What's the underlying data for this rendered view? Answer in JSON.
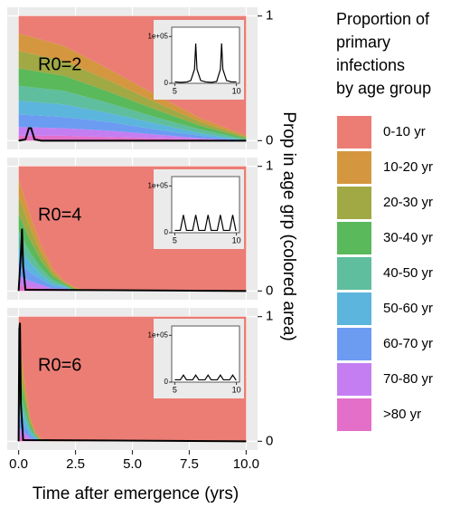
{
  "chart_data": {
    "type": "area",
    "xlabel": "Time after emergence (yrs)",
    "y2label": "Prop in age grp (colored area)",
    "legend_title": [
      "Proportion of",
      "primary",
      "infections",
      "by age group"
    ],
    "xlim": [
      -0.5,
      10.5
    ],
    "xticks": [
      {
        "value": 0,
        "label": "0.0"
      },
      {
        "value": 2.5,
        "label": "2.5"
      },
      {
        "value": 5,
        "label": "5.0"
      },
      {
        "value": 7.5,
        "label": "7.5"
      },
      {
        "value": 10,
        "label": "10.0"
      }
    ],
    "ylim": [
      -0.07,
      1.07
    ],
    "y2ticks": [
      0,
      1
    ],
    "grid": true,
    "groups": [
      {
        "name": "0-10 yr",
        "color": "#eb7d75"
      },
      {
        "name": "10-20 yr",
        "color": "#d4973f"
      },
      {
        "name": "20-30 yr",
        "color": "#a0a944"
      },
      {
        "name": "30-40 yr",
        "color": "#5ab95a"
      },
      {
        "name": "40-50 yr",
        "color": "#5fbe9d"
      },
      {
        "name": "50-60 yr",
        "color": "#5cb5dc"
      },
      {
        "name": "60-70 yr",
        "color": "#6b9cf2"
      },
      {
        "name": "70-80 yr",
        "color": "#c57ef2"
      },
      {
        "name": ">80 yr",
        "color": "#e46fc9"
      }
    ],
    "panels": [
      {
        "label": "R0=2",
        "x": [
          0,
          2,
          4,
          6,
          8,
          10
        ],
        "series": [
          {
            "values": [
              0.14,
              0.24,
              0.43,
              0.63,
              0.82,
              0.96
            ]
          },
          {
            "values": [
              0.14,
              0.12,
              0.09,
              0.06,
              0.03,
              0.01
            ]
          },
          {
            "values": [
              0.14,
              0.12,
              0.09,
              0.06,
              0.03,
              0.01
            ]
          },
          {
            "values": [
              0.14,
              0.12,
              0.09,
              0.06,
              0.03,
              0.01
            ]
          },
          {
            "values": [
              0.12,
              0.11,
              0.08,
              0.05,
              0.03,
              0.01
            ]
          },
          {
            "values": [
              0.11,
              0.1,
              0.07,
              0.05,
              0.02,
              0
            ]
          },
          {
            "values": [
              0.1,
              0.09,
              0.07,
              0.04,
              0.02,
              0
            ]
          },
          {
            "values": [
              0.07,
              0.06,
              0.05,
              0.03,
              0.01,
              0
            ]
          },
          {
            "values": [
              0.04,
              0.04,
              0.03,
              0.02,
              0.01,
              0
            ]
          }
        ],
        "line": {
          "x": [
            0,
            0.3,
            0.45,
            0.55,
            0.7,
            1,
            10
          ],
          "values": [
            0,
            0.01,
            0.1,
            0.1,
            0.01,
            0,
            0
          ]
        },
        "inset": {
          "xlim": [
            4.75,
            10.25
          ],
          "ylim": [
            0,
            120000
          ],
          "xticks": [
            5,
            10
          ],
          "yticks": [
            0,
            {
              "value": 100000,
              "label": "1e+05"
            }
          ],
          "x": [
            5,
            5.5,
            6,
            6.3,
            6.6,
            6.7,
            6.8,
            7.1,
            7.5,
            8,
            8.4,
            8.7,
            8.8,
            8.9,
            9.2,
            9.6,
            10
          ],
          "values": [
            3000,
            2000,
            3000,
            6000,
            30000,
            85000,
            30000,
            6000,
            3000,
            2000,
            4000,
            30000,
            85000,
            30000,
            6000,
            3000,
            3000
          ]
        }
      },
      {
        "label": "R0=4",
        "x": [
          0,
          0.5,
          1,
          1.5,
          2,
          2.5,
          3,
          10
        ],
        "series": [
          {
            "values": [
              0.1,
              0.39,
              0.64,
              0.82,
              0.92,
              0.97,
              1,
              1
            ]
          },
          {
            "values": [
              0.14,
              0.1,
              0.06,
              0.03,
              0.01,
              0.01,
              0,
              0
            ]
          },
          {
            "values": [
              0.14,
              0.1,
              0.06,
              0.03,
              0.01,
              0.01,
              0,
              0
            ]
          },
          {
            "values": [
              0.14,
              0.1,
              0.06,
              0.03,
              0.01,
              0.01,
              0,
              0
            ]
          },
          {
            "values": [
              0.13,
              0.08,
              0.05,
              0.03,
              0.01,
              0,
              0,
              0
            ]
          },
          {
            "values": [
              0.12,
              0.08,
              0.04,
              0.02,
              0.01,
              0,
              0,
              0
            ]
          },
          {
            "values": [
              0.11,
              0.07,
              0.04,
              0.02,
              0.01,
              0,
              0,
              0
            ]
          },
          {
            "values": [
              0.07,
              0.05,
              0.03,
              0.01,
              0.01,
              0,
              0,
              0
            ]
          },
          {
            "values": [
              0.05,
              0.03,
              0.02,
              0.01,
              0.01,
              0,
              0,
              0
            ]
          }
        ],
        "line": {
          "x": [
            0,
            0.1,
            0.15,
            0.2,
            0.3,
            10
          ],
          "values": [
            0,
            0.3,
            0.5,
            0.2,
            0.01,
            0
          ]
        },
        "inset": {
          "xlim": [
            4.75,
            10.25
          ],
          "ylim": [
            0,
            120000
          ],
          "xticks": [
            5,
            10
          ],
          "yticks": [
            0,
            {
              "value": 100000,
              "label": "1e+05"
            }
          ],
          "x": [
            5,
            5.45,
            5.7,
            5.95,
            6.45,
            6.7,
            6.95,
            7.45,
            7.7,
            7.95,
            8.45,
            8.7,
            8.95,
            9.45,
            9.7,
            9.95,
            10
          ],
          "values": [
            5000,
            5000,
            38000,
            5000,
            5000,
            38000,
            5000,
            5000,
            38000,
            5000,
            5000,
            38000,
            5000,
            5000,
            38000,
            5000,
            5000
          ]
        }
      },
      {
        "label": "R0=6",
        "x": [
          0,
          0.25,
          0.5,
          0.75,
          1,
          1.5,
          10
        ],
        "series": [
          {
            "values": [
              0.14,
              0.49,
              0.8,
              0.93,
              0.98,
              1,
              1
            ]
          },
          {
            "values": [
              0.14,
              0.08,
              0.03,
              0.01,
              0.01,
              0,
              0
            ]
          },
          {
            "values": [
              0.14,
              0.08,
              0.03,
              0.01,
              0.01,
              0,
              0
            ]
          },
          {
            "values": [
              0.14,
              0.08,
              0.03,
              0.01,
              0,
              0,
              0
            ]
          },
          {
            "values": [
              0.12,
              0.07,
              0.03,
              0.01,
              0,
              0,
              0
            ]
          },
          {
            "values": [
              0.11,
              0.07,
              0.03,
              0.01,
              0,
              0,
              0
            ]
          },
          {
            "values": [
              0.1,
              0.06,
              0.02,
              0.01,
              0,
              0,
              0
            ]
          },
          {
            "values": [
              0.07,
              0.04,
              0.02,
              0.01,
              0,
              0,
              0
            ]
          },
          {
            "values": [
              0.04,
              0.03,
              0.01,
              0,
              0,
              0,
              0
            ]
          }
        ],
        "line": {
          "x": [
            0,
            0.03,
            0.06,
            0.1,
            0.2,
            10
          ],
          "values": [
            0,
            0.9,
            0.95,
            0.3,
            0.01,
            0
          ]
        },
        "inset": {
          "xlim": [
            4.75,
            10.25
          ],
          "ylim": [
            0,
            120000
          ],
          "xticks": [
            5,
            10
          ],
          "yticks": [
            0,
            {
              "value": 100000,
              "label": "1e+05"
            }
          ],
          "x": [
            5,
            5.45,
            5.7,
            5.95,
            6.45,
            6.7,
            6.95,
            7.45,
            7.7,
            7.95,
            8.45,
            8.7,
            8.95,
            9.45,
            9.7,
            9.95,
            10
          ],
          "values": [
            5000,
            5000,
            15000,
            5000,
            5000,
            15000,
            5000,
            5000,
            15000,
            5000,
            5000,
            15000,
            5000,
            5000,
            15000,
            5000,
            5000
          ]
        }
      }
    ]
  }
}
